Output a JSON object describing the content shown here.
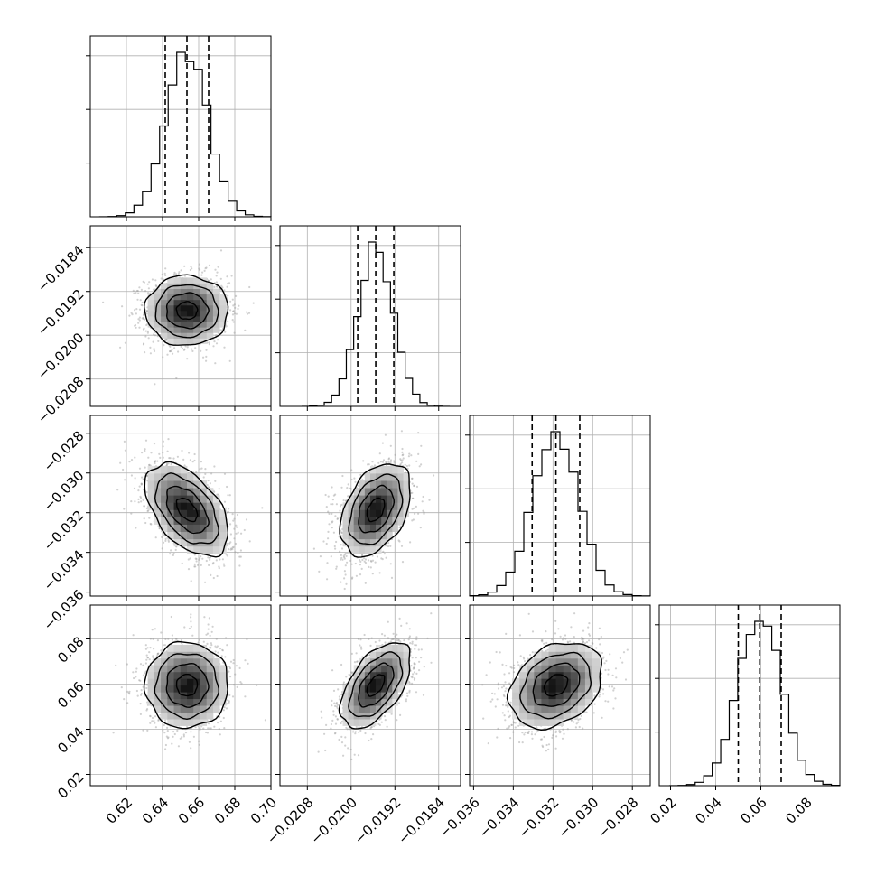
{
  "chart_data": {
    "type": "corner",
    "parameters": [
      {
        "mean": 0.6535,
        "sd": 0.0115,
        "range": [
          0.6,
          0.7
        ],
        "quantiles": [
          0.6415,
          0.6535,
          0.6655
        ],
        "ticks": [
          0.62,
          0.64,
          0.66,
          0.68,
          0.7
        ],
        "tick_labels": [
          "0.62",
          "0.64",
          "0.66",
          "0.68",
          "0.70"
        ]
      },
      {
        "mean": -0.01955,
        "sd": 0.00032,
        "range": [
          -0.0213,
          -0.018
        ],
        "quantiles": [
          -0.01988,
          -0.01955,
          -0.01922
        ],
        "ticks": [
          -0.0208,
          -0.02,
          -0.0192,
          -0.0184
        ],
        "tick_labels": [
          "−0.0208",
          "−0.0200",
          "−0.0192",
          "−0.0184"
        ]
      },
      {
        "mean": -0.03185,
        "sd": 0.00117,
        "range": [
          -0.0362,
          -0.0271
        ],
        "quantiles": [
          -0.03305,
          -0.03185,
          -0.03065
        ],
        "ticks": [
          -0.036,
          -0.034,
          -0.032,
          -0.03,
          -0.028
        ],
        "tick_labels": [
          "−0.036",
          "−0.034",
          "−0.032",
          "−0.030",
          "−0.028"
        ]
      },
      {
        "mean": 0.0595,
        "sd": 0.0095,
        "range": [
          0.015,
          0.095
        ],
        "quantiles": [
          0.05,
          0.0595,
          0.069
        ],
        "ticks": [
          0.02,
          0.04,
          0.06,
          0.08
        ],
        "tick_labels": [
          "0.02",
          "0.04",
          "0.06",
          "0.08"
        ]
      }
    ],
    "correlations": {
      "1-0": 0.0,
      "2-0": -0.5,
      "2-1": 0.4,
      "3-0": 0.0,
      "3-1": 0.55,
      "3-2": 0.3
    },
    "histogram_bins": 20,
    "contour_levels_sigma": [
      0.5,
      1.0,
      1.5,
      2.0
    ],
    "grid": true,
    "colors": {
      "line": "#000000",
      "points": "#9a9a9a",
      "density": "#000000",
      "grid": "#b0b0b0"
    }
  }
}
